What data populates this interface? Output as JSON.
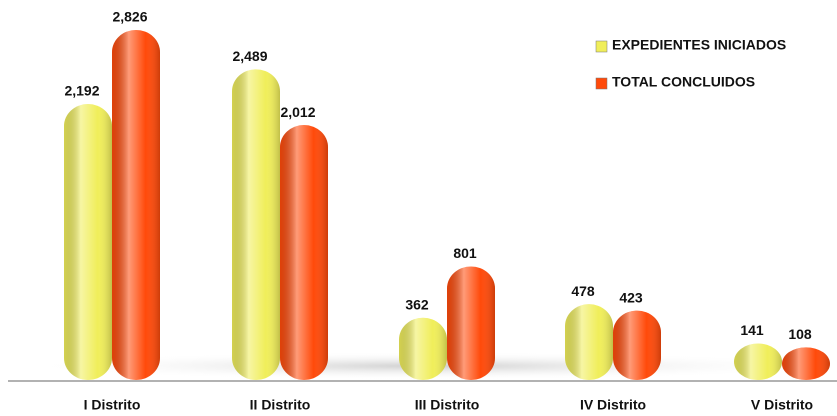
{
  "chart_data": {
    "type": "bar",
    "categories": [
      "I Distrito",
      "II Distrito",
      "III Distrito",
      "IV Distrito",
      "V Distrito"
    ],
    "series": [
      {
        "name": "EXPEDIENTES INICIADOS",
        "color": "#f0ee5a",
        "values": [
          2192,
          2489,
          362,
          478,
          141
        ],
        "value_labels": [
          "2,192",
          "2,489",
          "362",
          "478",
          "141"
        ]
      },
      {
        "name": "TOTAL CONCLUIDOS",
        "color": "#ff4a0a",
        "values": [
          2826,
          2012,
          801,
          423,
          108
        ],
        "value_labels": [
          "2,826",
          "2,012",
          "801",
          "423",
          "108"
        ]
      }
    ],
    "legend": "top-right"
  }
}
